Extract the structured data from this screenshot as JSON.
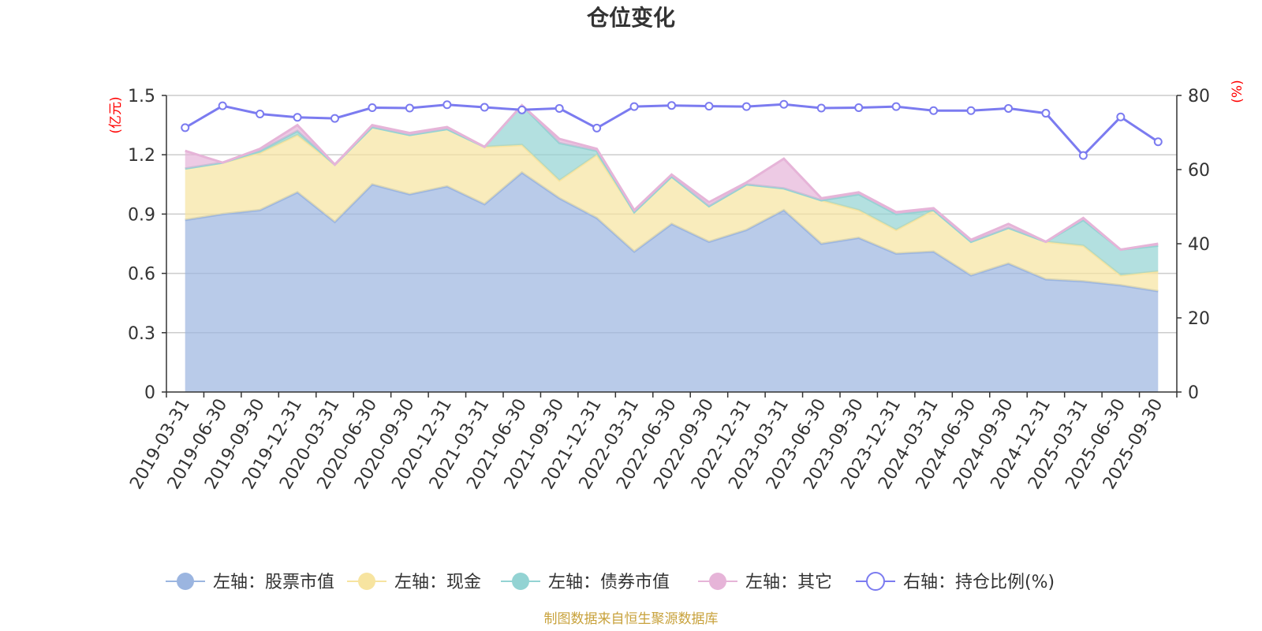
{
  "chart_data": {
    "type": "area",
    "title": "仓位变化",
    "left_axis_unit": "(亿元)",
    "right_axis_unit": "(%)",
    "ylim_left": [
      0,
      1.5
    ],
    "yticks_left": [
      "0",
      "0.3",
      "0.6",
      "0.9",
      "1.2",
      "1.5"
    ],
    "ylim_right": [
      0,
      80
    ],
    "yticks_right": [
      "0",
      "20",
      "40",
      "60",
      "80"
    ],
    "categories": [
      "2019-03-31",
      "2019-06-30",
      "2019-09-30",
      "2019-12-31",
      "2020-03-31",
      "2020-06-30",
      "2020-09-30",
      "2020-12-31",
      "2021-03-31",
      "2021-06-30",
      "2021-09-30",
      "2021-12-31",
      "2022-03-31",
      "2022-06-30",
      "2022-09-30",
      "2022-12-31",
      "2023-03-31",
      "2023-06-30",
      "2023-09-30",
      "2023-12-31",
      "2024-03-31",
      "2024-06-30",
      "2024-09-30",
      "2024-12-31",
      "2025-03-31",
      "2025-06-30",
      "2025-09-30"
    ],
    "series": [
      {
        "name": "左轴：股票市值",
        "axis": "left",
        "color": "#9bb5e0",
        "values": [
          0.87,
          0.9,
          0.92,
          1.01,
          0.86,
          1.05,
          1.0,
          1.04,
          0.95,
          1.11,
          0.98,
          0.88,
          0.71,
          0.85,
          0.76,
          0.82,
          0.92,
          0.75,
          0.78,
          0.7,
          0.71,
          0.59,
          0.65,
          0.57,
          0.56,
          0.54,
          0.51
        ]
      },
      {
        "name": "左轴：现金",
        "axis": "left",
        "color": "#f7e4a0",
        "values": [
          0.26,
          0.26,
          0.29,
          0.29,
          0.29,
          0.29,
          0.3,
          0.29,
          0.29,
          0.14,
          0.09,
          0.32,
          0.2,
          0.24,
          0.18,
          0.23,
          0.11,
          0.22,
          0.14,
          0.12,
          0.21,
          0.17,
          0.18,
          0.19,
          0.18,
          0.05,
          0.1
        ]
      },
      {
        "name": "左轴：债券市值",
        "axis": "left",
        "color": "#93d3d3",
        "values": [
          0.0,
          0.0,
          0.01,
          0.02,
          0.0,
          0.0,
          0.0,
          0.0,
          0.0,
          0.2,
          0.19,
          0.02,
          0.0,
          0.0,
          0.0,
          0.0,
          0.0,
          0.0,
          0.08,
          0.08,
          0.0,
          0.0,
          0.0,
          0.0,
          0.13,
          0.13,
          0.13
        ]
      },
      {
        "name": "左轴：其它",
        "axis": "left",
        "color": "#e6b4d8",
        "values": [
          0.09,
          0.0,
          0.01,
          0.03,
          0.0,
          0.01,
          0.01,
          0.01,
          0.0,
          0.0,
          0.02,
          0.01,
          0.01,
          0.01,
          0.02,
          0.01,
          0.15,
          0.01,
          0.01,
          0.01,
          0.01,
          0.01,
          0.02,
          0.0,
          0.01,
          0.0,
          0.01
        ]
      },
      {
        "name": "右轴：持仓比例(%)",
        "axis": "right",
        "color": "#7b7bf0",
        "values": [
          71.3,
          77.2,
          75.0,
          74.1,
          73.8,
          76.7,
          76.6,
          77.5,
          76.8,
          76.1,
          76.5,
          71.2,
          77.0,
          77.3,
          77.1,
          77.0,
          77.6,
          76.6,
          76.7,
          77.0,
          75.9,
          75.9,
          76.5,
          75.2,
          63.8,
          74.2,
          67.5
        ]
      }
    ]
  },
  "footer": {
    "source": "制图数据来自恒生聚源数据库"
  }
}
